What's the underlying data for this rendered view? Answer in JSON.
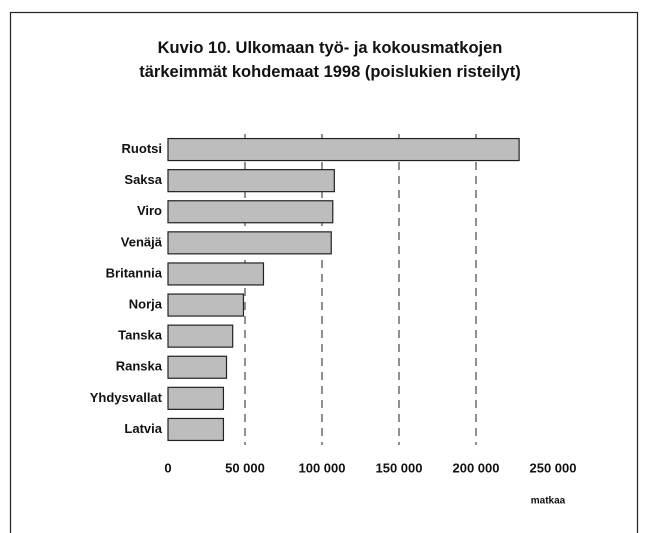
{
  "chart_data": {
    "type": "bar",
    "orientation": "horizontal",
    "title": "Kuvio 10. Ulkomaan työ- ja kokousmatkojen tärkeimmät kohdemaat 1998 (poislukien risteilyt)",
    "x_label": "matkaa",
    "categories": [
      "Ruotsi",
      "Saksa",
      "Viro",
      "Venäjä",
      "Britannia",
      "Norja",
      "Tanska",
      "Ranska",
      "Yhdysvallat",
      "Latvia"
    ],
    "values": [
      228000,
      108000,
      107000,
      106000,
      62000,
      49000,
      42000,
      38000,
      36000,
      36000
    ],
    "color": "#bdbdbd",
    "xlim": [
      0,
      250000
    ],
    "xticks": [
      0,
      {
        "value": 50000,
        "label": "50 000"
      },
      {
        "value": 100000,
        "label": "100 000"
      },
      {
        "value": 150000,
        "label": "150 000"
      },
      {
        "value": 200000,
        "label": "200 000"
      },
      {
        "value": 250000,
        "label": "250 000"
      }
    ],
    "grid": true
  }
}
